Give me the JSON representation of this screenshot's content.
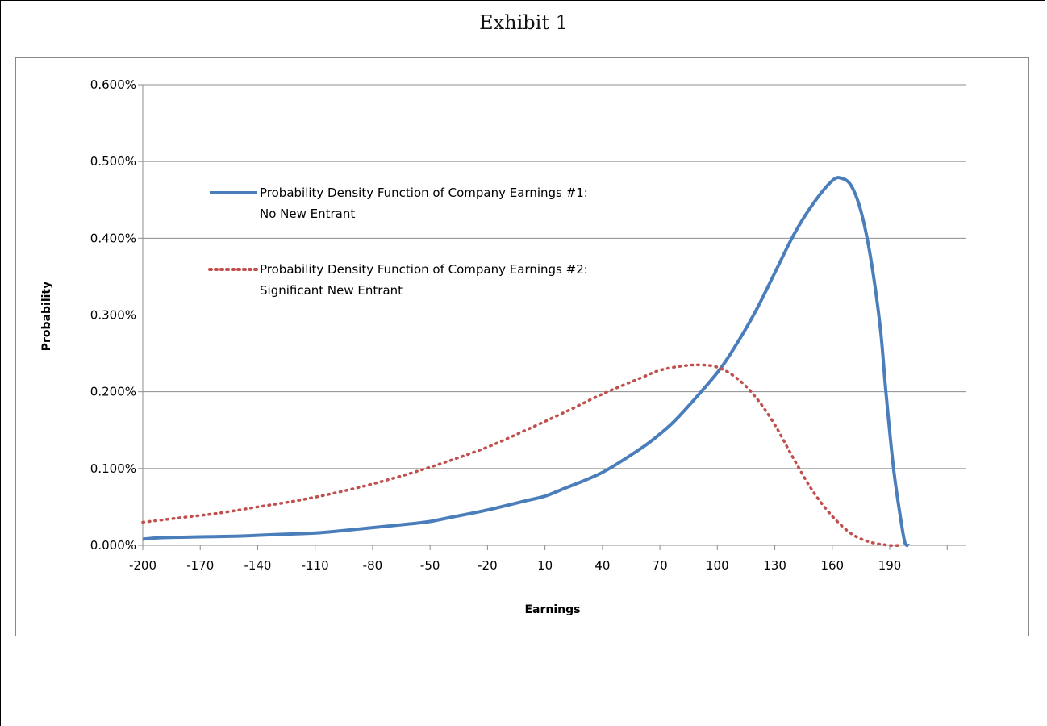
{
  "title": "Exhibit 1",
  "chart_data": {
    "type": "line",
    "xlabel": "Earnings",
    "ylabel": "Probability",
    "xlim": [
      -200,
      230
    ],
    "ylim": [
      0,
      0.006
    ],
    "x_ticks": [
      -200,
      -170,
      -140,
      -110,
      -80,
      -50,
      -20,
      10,
      40,
      70,
      100,
      130,
      160,
      190
    ],
    "y_ticks": [
      0,
      0.001,
      0.002,
      0.003,
      0.004,
      0.005,
      0.006
    ],
    "y_tick_labels": [
      "0.000%",
      "0.100%",
      "0.200%",
      "0.300%",
      "0.400%",
      "0.500%",
      "0.600%"
    ],
    "grid": "horizontal",
    "legend_position": "top-left",
    "series": [
      {
        "name": "Probability Density Function of Company Earnings #1: No New Entrant",
        "legend_lines": [
          "Probability Density Function of Company Earnings #1:",
          "No New Entrant"
        ],
        "color": "#4a7ebb",
        "style": "solid",
        "x": [
          -200,
          -190,
          -170,
          -150,
          -140,
          -120,
          -110,
          -100,
          -80,
          -60,
          -50,
          -40,
          -20,
          0,
          10,
          20,
          40,
          60,
          70,
          80,
          100,
          110,
          120,
          130,
          140,
          150,
          160,
          165,
          170,
          175,
          180,
          185,
          188,
          192,
          196,
          198,
          200
        ],
        "y": [
          8e-05,
          0.0001,
          0.00011,
          0.00012,
          0.00013,
          0.00015,
          0.00016,
          0.00018,
          0.00023,
          0.00028,
          0.00031,
          0.00036,
          0.00046,
          0.00058,
          0.00064,
          0.00074,
          0.00095,
          0.00126,
          0.00145,
          0.00168,
          0.00225,
          0.00262,
          0.00305,
          0.00355,
          0.00405,
          0.00445,
          0.00475,
          0.00478,
          0.00468,
          0.00435,
          0.00375,
          0.00285,
          0.002,
          0.001,
          0.0003,
          3e-05,
          0
        ]
      },
      {
        "name": "Probability Density Function of Company Earnings #2: Significant New Entrant",
        "legend_lines": [
          "Probability Density Function of Company Earnings #2:",
          "Significant New Entrant"
        ],
        "color": "#c0504d",
        "style": "dotted",
        "x": [
          -200,
          -180,
          -160,
          -140,
          -120,
          -100,
          -80,
          -60,
          -40,
          -20,
          0,
          20,
          40,
          60,
          70,
          80,
          90,
          100,
          110,
          120,
          130,
          140,
          150,
          160,
          170,
          180,
          190,
          195
        ],
        "y": [
          0.0003,
          0.00036,
          0.00042,
          0.0005,
          0.00058,
          0.00068,
          0.0008,
          0.00094,
          0.0011,
          0.00128,
          0.0015,
          0.00173,
          0.00197,
          0.00218,
          0.00228,
          0.00233,
          0.00235,
          0.00232,
          0.00218,
          0.00193,
          0.00157,
          0.00112,
          0.0007,
          0.00038,
          0.00015,
          4e-05,
          0,
          0
        ]
      }
    ]
  }
}
